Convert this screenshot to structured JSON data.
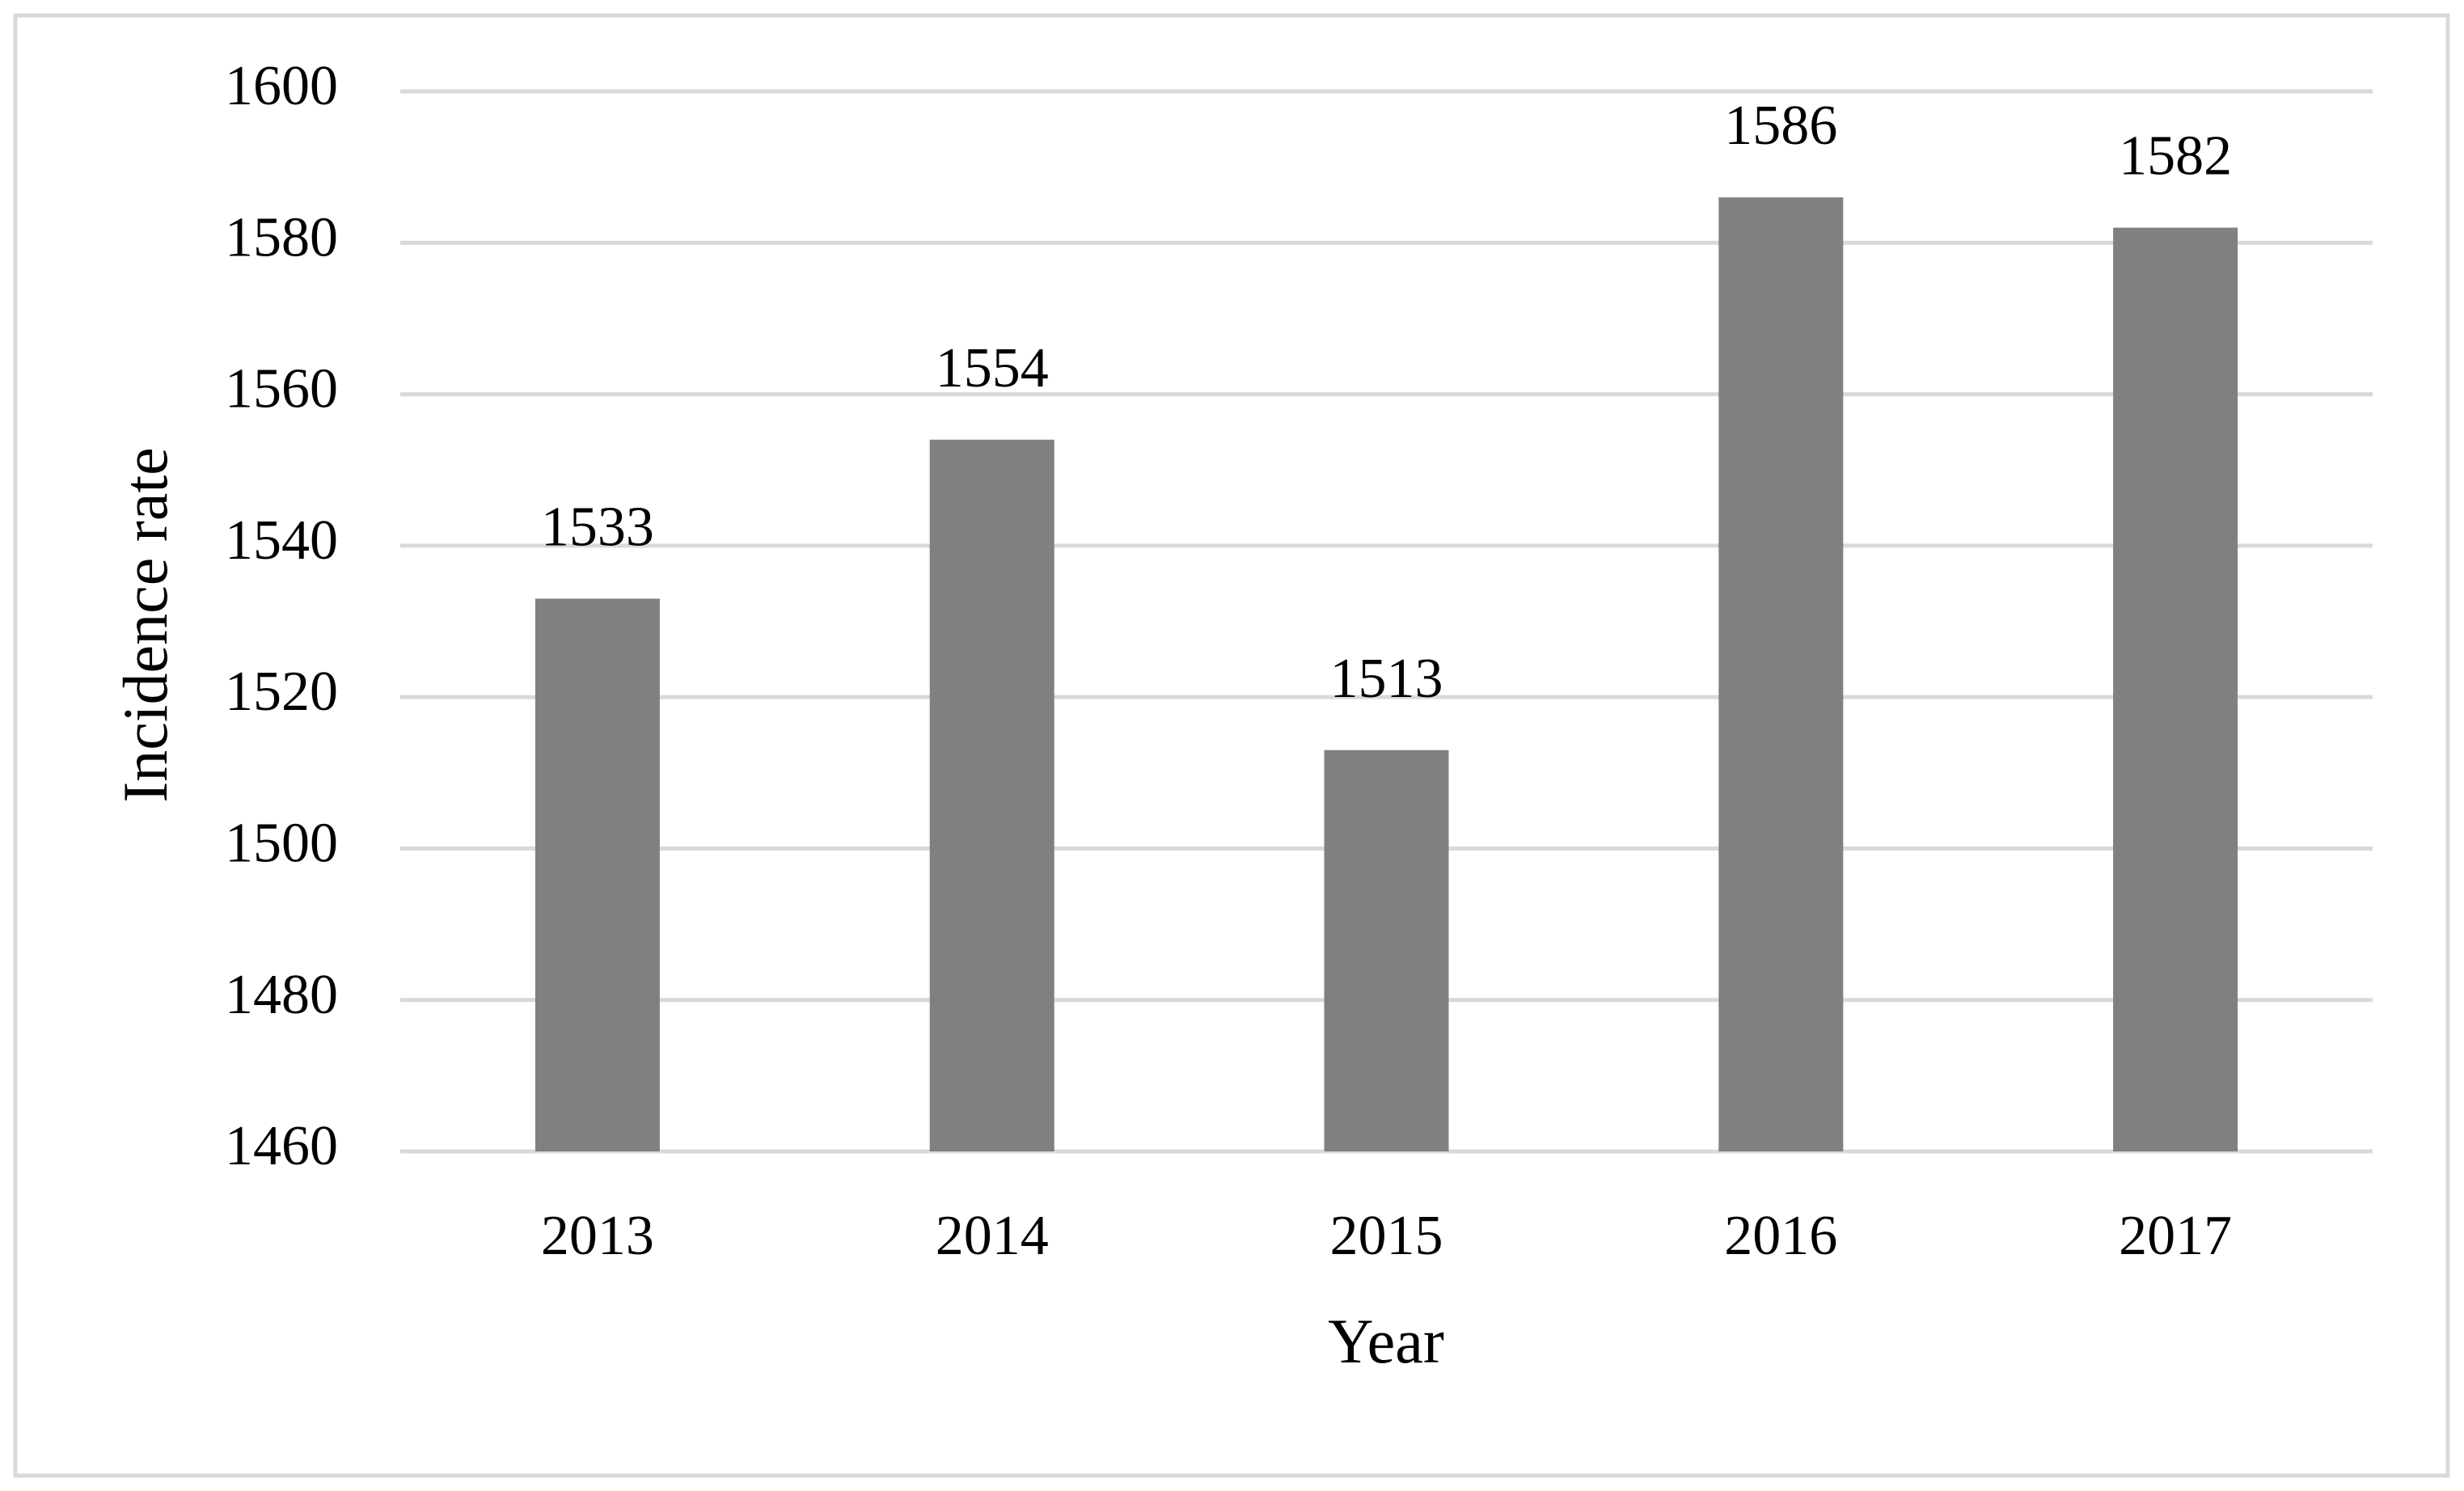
{
  "chart_data": {
    "type": "bar",
    "x_label": "Year",
    "y_label": "Incidence rate",
    "categories": [
      "2013",
      "2014",
      "2015",
      "2016",
      "2017"
    ],
    "values": [
      1533,
      1554,
      1513,
      1586,
      1582
    ],
    "color": "#808080",
    "ylim": [
      1460,
      1600
    ],
    "yticks": [
      1460,
      1480,
      1500,
      1520,
      1540,
      1560,
      1580,
      1600
    ],
    "grid": true
  }
}
